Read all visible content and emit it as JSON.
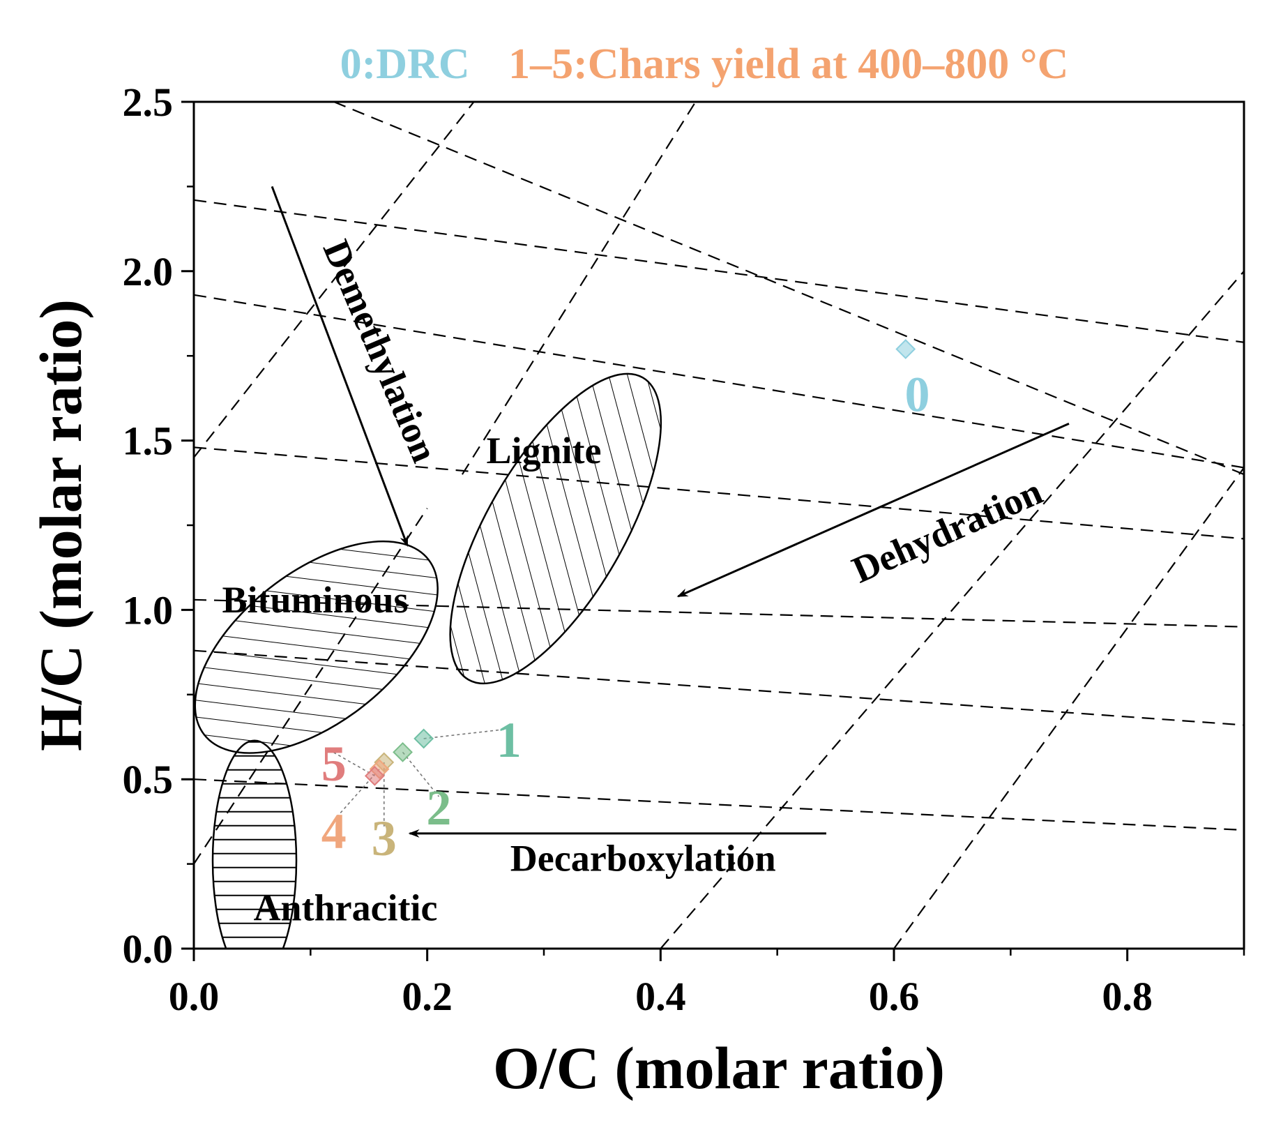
{
  "chart_data": {
    "type": "scatter",
    "title_parts": [
      {
        "text": "0:DRC",
        "color": "#8ecfdf"
      },
      {
        "text": "1–5:Chars yield at 400–800 °C",
        "color": "#f4a370"
      }
    ],
    "xlabel": "O/C (molar ratio)",
    "ylabel": "H/C (molar ratio)",
    "xlim": [
      0.0,
      0.9
    ],
    "ylim": [
      0.0,
      2.5
    ],
    "x_ticks": [
      "0.0",
      "0.2",
      "0.4",
      "0.6",
      "0.8"
    ],
    "x_tick_values": [
      0.0,
      0.2,
      0.4,
      0.6,
      0.8
    ],
    "y_ticks": [
      "0.0",
      "0.5",
      "1.0",
      "1.5",
      "2.0",
      "2.5"
    ],
    "y_tick_values": [
      0.0,
      0.5,
      1.0,
      1.5,
      2.0,
      2.5
    ],
    "points": [
      {
        "label": "0",
        "x": 0.61,
        "y": 1.77,
        "color": "#8ecfdf",
        "label_x": 0.62,
        "label_y": 1.64
      },
      {
        "label": "1",
        "x": 0.197,
        "y": 0.62,
        "color": "#6dbfa3",
        "label_x": 0.27,
        "label_y": 0.62
      },
      {
        "label": "2",
        "x": 0.179,
        "y": 0.58,
        "color": "#7bbd8a",
        "label_x": 0.21,
        "label_y": 0.42
      },
      {
        "label": "3",
        "x": 0.163,
        "y": 0.55,
        "color": "#c9b47a",
        "label_x": 0.163,
        "label_y": 0.33
      },
      {
        "label": "4",
        "x": 0.159,
        "y": 0.53,
        "color": "#f0a67d",
        "label_x": 0.12,
        "label_y": 0.35
      },
      {
        "label": "5",
        "x": 0.155,
        "y": 0.51,
        "color": "#e07d7d",
        "label_x": 0.12,
        "label_y": 0.55
      }
    ],
    "regions": [
      {
        "name": "Lignite",
        "cx": 0.31,
        "cy": 1.24,
        "hatch": "diagonal",
        "label_x": 0.3,
        "label_y": 1.47
      },
      {
        "name": "Bituminous",
        "cx": 0.105,
        "cy": 0.89,
        "hatch": "cross",
        "label_x": 0.104,
        "label_y": 1.03
      },
      {
        "name": "Anthracitic",
        "cx": 0.052,
        "cy": 0.26,
        "hatch": "horizontal",
        "label_x": 0.13,
        "label_y": 0.12
      }
    ],
    "processes": [
      {
        "name": "Demethylation",
        "from": [
          0.067,
          2.25
        ],
        "to": [
          0.183,
          1.19
        ],
        "label_x": 0.15,
        "label_y": 1.75,
        "angle": 67
      },
      {
        "name": "Dehydration",
        "from": [
          0.75,
          1.55
        ],
        "to": [
          0.415,
          1.04
        ],
        "label_x": 0.65,
        "label_y": 1.2,
        "angle": -24
      },
      {
        "name": "Decarboxylation",
        "from": [
          0.542,
          0.34
        ],
        "to": [
          0.185,
          0.34
        ],
        "label_x": 0.385,
        "label_y": 0.23,
        "angle": 0
      }
    ],
    "isolines_hc_family": [
      {
        "from": [
          0.0,
          2.21
        ],
        "to": [
          0.9,
          1.79
        ]
      },
      {
        "from": [
          0.0,
          1.93
        ],
        "to": [
          0.9,
          1.42
        ]
      },
      {
        "from": [
          0.0,
          1.48
        ],
        "to": [
          0.9,
          1.21
        ]
      },
      {
        "from": [
          0.0,
          1.03
        ],
        "to": [
          0.9,
          0.95
        ]
      },
      {
        "from": [
          0.0,
          0.88
        ],
        "to": [
          0.9,
          0.66
        ]
      },
      {
        "from": [
          0.0,
          0.5
        ],
        "to": [
          0.9,
          0.35
        ]
      },
      {
        "from": [
          0.12,
          2.5
        ],
        "to": [
          0.9,
          1.4
        ]
      }
    ],
    "isolines_oc_family": [
      {
        "from": [
          0.0,
          1.45
        ],
        "to": [
          0.24,
          2.5
        ]
      },
      {
        "from": [
          0.0,
          0.25
        ],
        "to": [
          0.2,
          1.3
        ]
      },
      {
        "from": [
          0.23,
          1.4
        ],
        "to": [
          0.43,
          2.5
        ]
      },
      {
        "from": [
          0.4,
          0.0
        ],
        "to": [
          0.9,
          2.0
        ]
      },
      {
        "from": [
          0.6,
          0.0
        ],
        "to": [
          0.9,
          1.42
        ]
      }
    ],
    "grid": false,
    "legend": "top"
  }
}
